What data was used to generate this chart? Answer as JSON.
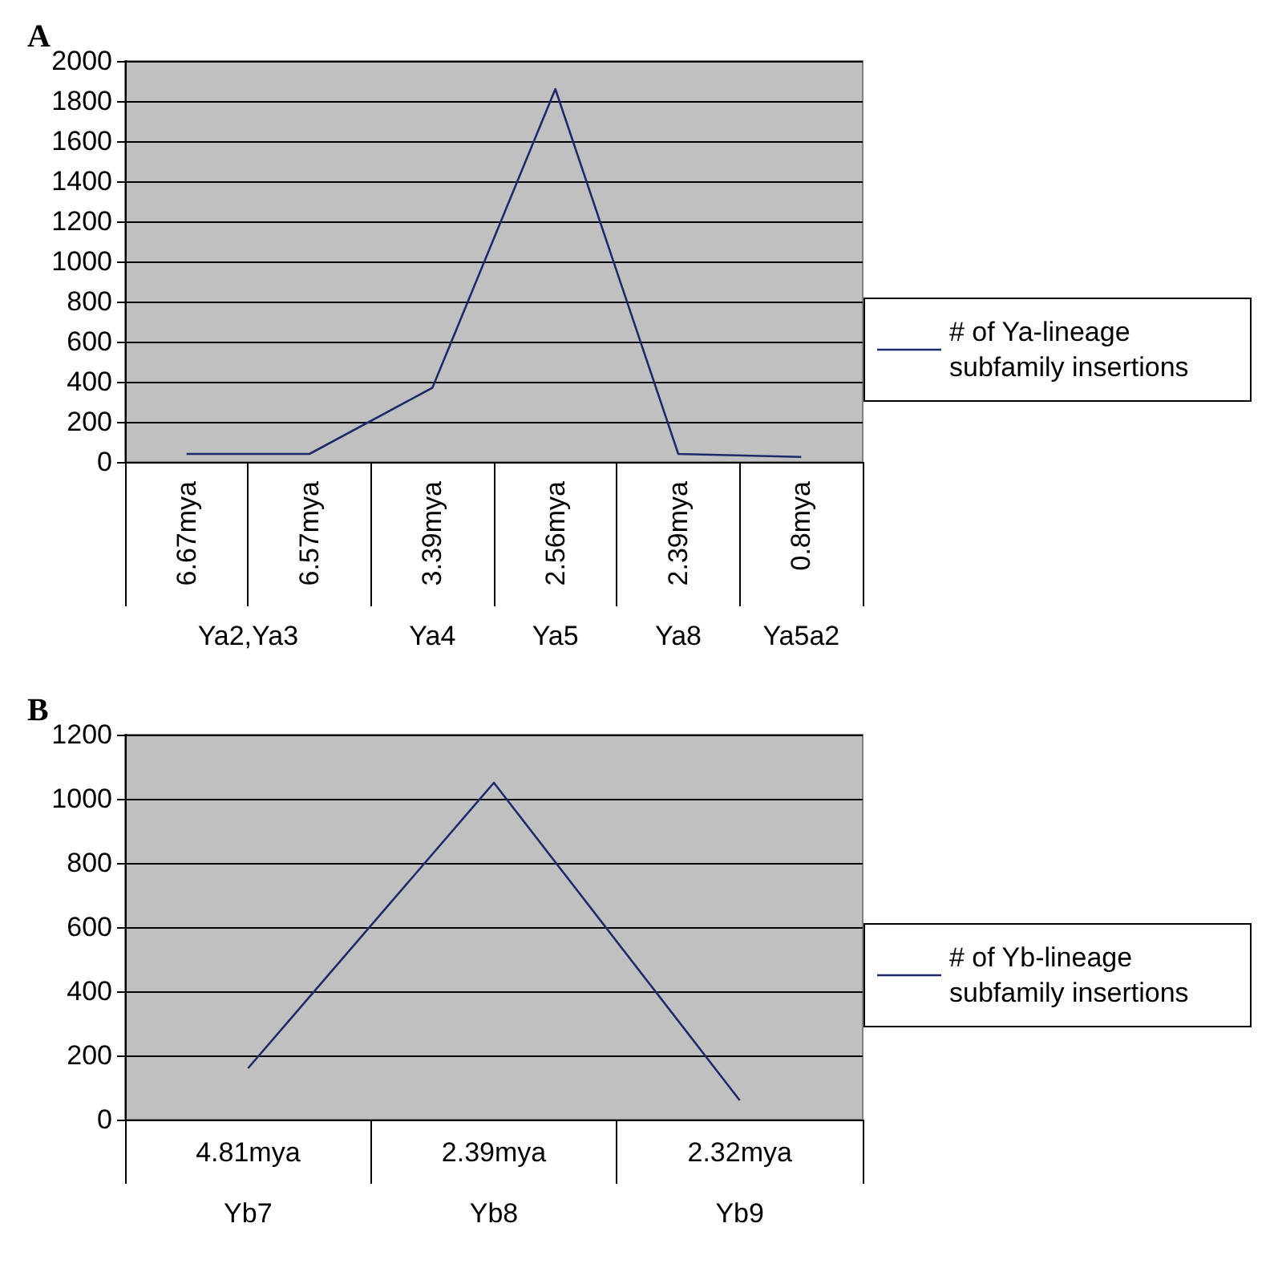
{
  "chart_data": [
    {
      "type": "line",
      "title": "A",
      "categories": [
        "6.67mya",
        "6.57mya",
        "3.39mya",
        "2.56mya",
        "2.39mya",
        "0.8mya"
      ],
      "series": [
        {
          "name": "# of Ya-lineage subfamily insertions",
          "color": "#1f2a6b",
          "values": [
            40,
            40,
            370,
            1860,
            40,
            25
          ]
        }
      ],
      "ylim": [
        0,
        2000
      ],
      "yticks": [
        0,
        200,
        400,
        600,
        800,
        1000,
        1200,
        1400,
        1600,
        1800,
        2000
      ],
      "grid": "y",
      "legend": "right",
      "marker": "none",
      "annotations": [
        "Ya2,Ya3",
        "Ya4",
        "Ya5",
        "Ya8",
        "Ya5a2"
      ]
    },
    {
      "type": "line",
      "title": "B",
      "categories": [
        "4.81mya",
        "2.39mya",
        "2.32mya"
      ],
      "series": [
        {
          "name": "# of Yb-lineage subfamily insertions",
          "color": "#1f2a6b",
          "values": [
            160,
            1050,
            60
          ]
        }
      ],
      "ylim": [
        0,
        1200
      ],
      "yticks": [
        0,
        200,
        400,
        600,
        800,
        1000,
        1200
      ],
      "grid": "y",
      "legend": "right",
      "marker": "none",
      "annotations": [
        "Yb7",
        "Yb8",
        "Yb9"
      ]
    }
  ]
}
